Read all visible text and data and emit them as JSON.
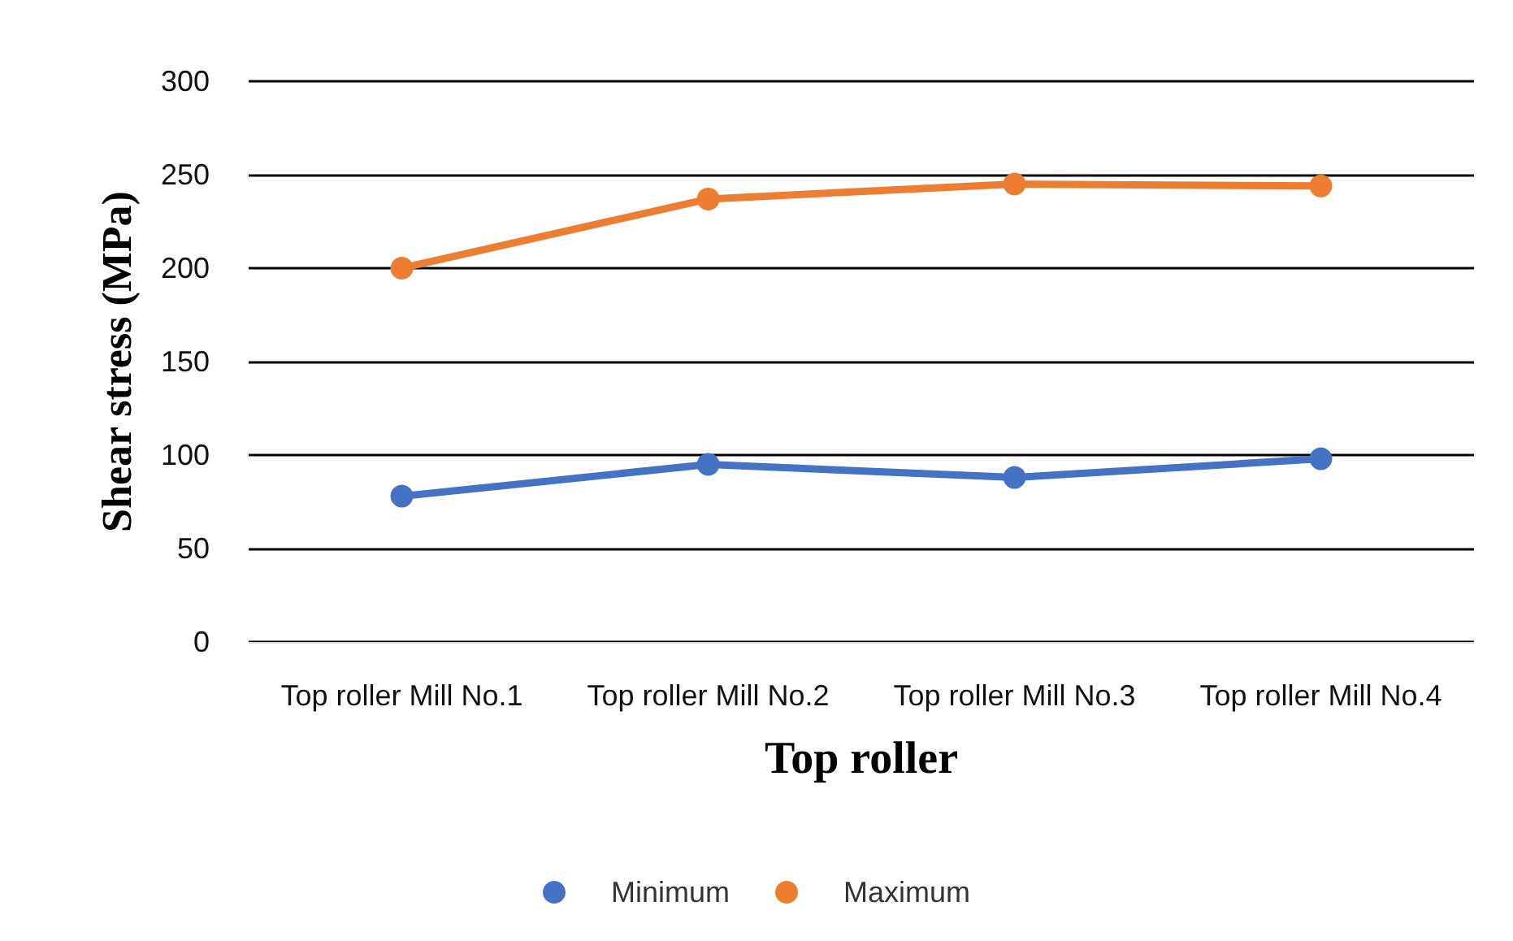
{
  "chart_data": {
    "type": "line",
    "xlabel": "Top roller",
    "ylabel": "Shear stress (MPa)",
    "categories": [
      "Top roller Mill No.1",
      "Top roller Mill No.2",
      "Top roller Mill No.3",
      "Top roller Mill No.4"
    ],
    "series": [
      {
        "name": "Minimum",
        "color": "#4472c4",
        "values": [
          78,
          95,
          88,
          98
        ]
      },
      {
        "name": "Maximum",
        "color": "#ed7d31",
        "values": [
          200,
          237,
          245,
          244
        ]
      }
    ],
    "ylim": [
      0,
      300
    ],
    "yticks": [
      0,
      50,
      100,
      150,
      200,
      250,
      300
    ],
    "grid": "y",
    "legend": "bottom",
    "marker": "circle"
  }
}
